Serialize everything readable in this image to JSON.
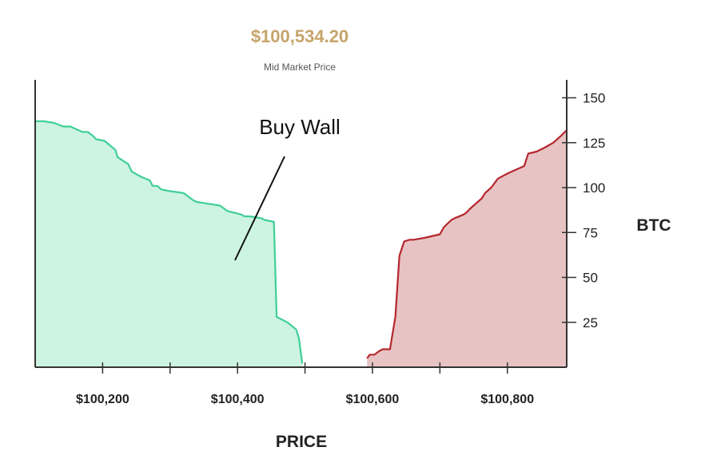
{
  "header": {
    "mid_price": "$100,534.20",
    "mid_label": "Mid Market Price"
  },
  "annotation": {
    "text": "Buy Wall",
    "target": [
      100452,
      25
    ]
  },
  "colors": {
    "bid_fill": "#cdf3e2",
    "bid_line": "#3ecf98",
    "ask_fill": "#e8c3c3",
    "ask_line": "#b5272e",
    "mid_price": "#c6a46a",
    "axis": "#333333"
  },
  "chart_data": {
    "type": "area",
    "title": "$100,534.20",
    "subtitle": "Mid Market Price",
    "xlabel": "PRICE",
    "ylabel": "BTC",
    "xlim": [
      100100,
      100888
    ],
    "ylim": [
      0,
      160
    ],
    "x_ticks": [
      100200,
      100300,
      100400,
      100500,
      100600,
      100700,
      100800
    ],
    "x_tick_labels": [
      "$100,200",
      "",
      "$100,400",
      "",
      "$100,600",
      "",
      "$100,800"
    ],
    "y_ticks": [
      25,
      50,
      75,
      100,
      125,
      150
    ],
    "y_tick_labels": [
      "25",
      "50",
      "75",
      "100",
      "125",
      "150"
    ],
    "grid": false,
    "series": [
      {
        "side": "bid",
        "x": [
          100100,
          100113,
          100128,
          100142,
          100152,
          100170,
          100178,
          100185,
          100190,
          100203,
          100219,
          100222,
          100238,
          100243,
          100257,
          100270,
          100274,
          100281,
          100287,
          100300,
          100320,
          100334,
          100340,
          100357,
          100374,
          100385,
          100406,
          100410,
          100418,
          100435,
          100440,
          100454,
          100458,
          100474,
          100487,
          100491,
          100496
        ],
        "y": [
          137,
          137,
          136,
          134,
          134,
          131,
          131,
          129,
          127,
          126,
          121,
          117,
          113,
          109,
          106,
          104,
          101,
          101,
          99,
          98,
          97,
          93,
          92,
          91,
          90,
          87,
          85,
          84,
          84,
          83,
          82,
          81,
          28,
          25,
          21,
          16,
          2
        ]
      },
      {
        "side": "ask",
        "x": [
          100592,
          100596,
          100603,
          100610,
          100615,
          100626,
          100634,
          100640,
          100647,
          100655,
          100661,
          100677,
          100700,
          100706,
          100717,
          100722,
          100735,
          100739,
          100744,
          100750,
          100762,
          100767,
          100776,
          100786,
          100801,
          100807,
          100825,
          100831,
          100843,
          100854,
          100868,
          100880,
          100888
        ],
        "y": [
          5,
          7,
          7,
          9,
          10,
          10,
          28,
          62,
          70,
          71,
          71,
          72,
          74,
          78,
          82,
          83,
          85,
          86,
          88,
          90,
          94,
          97,
          100,
          105,
          108,
          109,
          112,
          119,
          120,
          122,
          125,
          129,
          132
        ]
      }
    ]
  }
}
